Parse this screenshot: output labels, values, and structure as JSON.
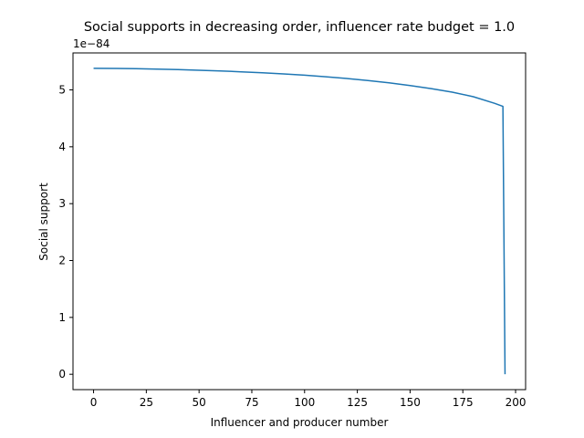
{
  "chart_data": {
    "type": "line",
    "title": "Social supports in decreasing order, influencer rate budget = 1.0",
    "xlabel": "Influencer and producer number",
    "ylabel": "Social support",
    "y_offset_label": "1e−84",
    "xlim": [
      -9.75,
      204.75
    ],
    "ylim": [
      -0.27,
      5.65
    ],
    "xticks": [
      0,
      25,
      50,
      75,
      100,
      125,
      150,
      175,
      200
    ],
    "xtick_labels": [
      "0",
      "25",
      "50",
      "75",
      "100",
      "125",
      "150",
      "175",
      "200"
    ],
    "yticks": [
      0,
      1,
      2,
      3,
      4,
      5
    ],
    "ytick_labels": [
      "0",
      "1",
      "2",
      "3",
      "4",
      "5"
    ],
    "grid": false,
    "series": [
      {
        "color": "#1f77b4",
        "x": [
          0,
          10,
          20,
          30,
          40,
          50,
          60,
          70,
          80,
          90,
          100,
          110,
          120,
          130,
          140,
          150,
          160,
          170,
          180,
          190,
          194,
          195
        ],
        "y": [
          5.38,
          5.378,
          5.373,
          5.366,
          5.357,
          5.346,
          5.333,
          5.318,
          5.301,
          5.281,
          5.258,
          5.231,
          5.2,
          5.165,
          5.124,
          5.077,
          5.023,
          4.96,
          4.88,
          4.765,
          4.71,
          0.0
        ]
      }
    ]
  }
}
